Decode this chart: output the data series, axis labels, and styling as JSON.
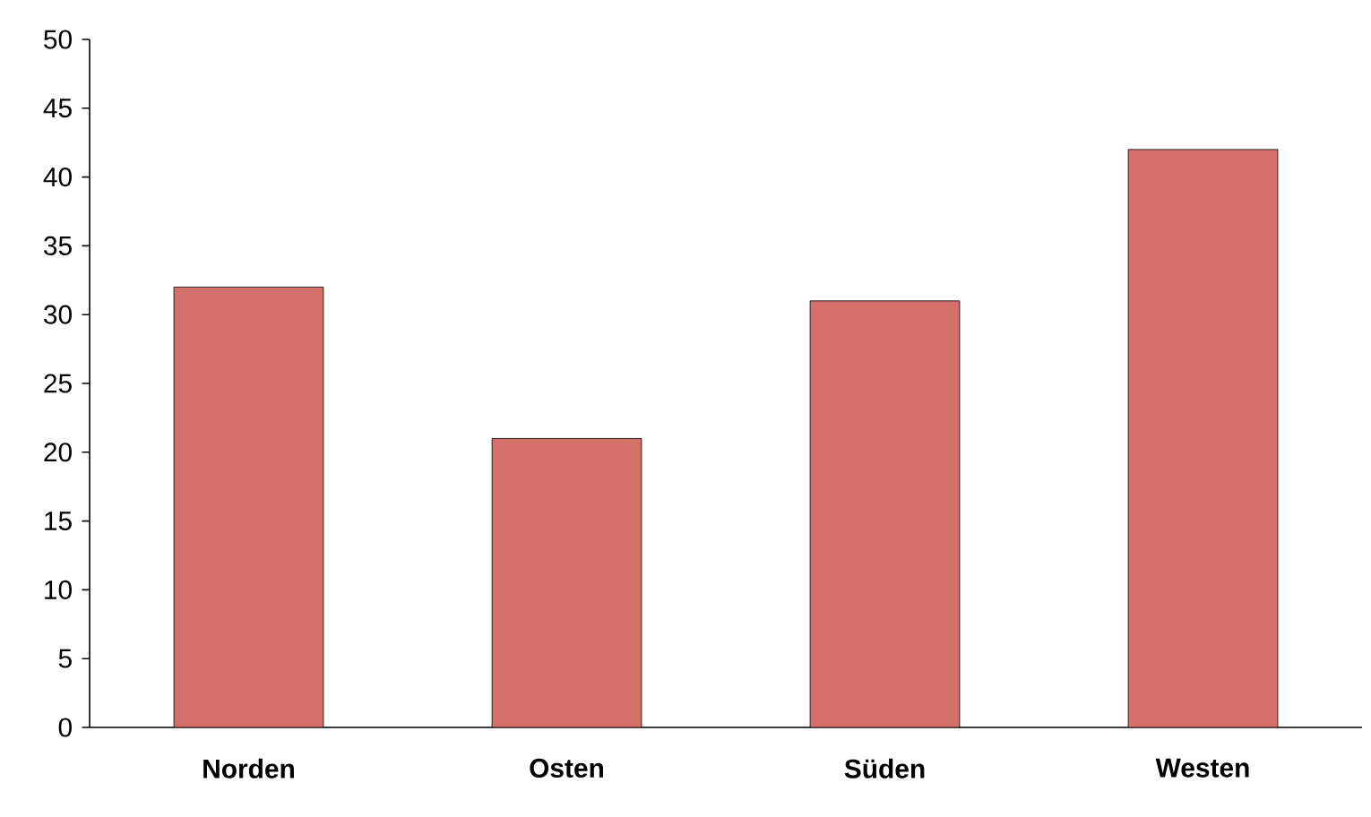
{
  "chart_data": {
    "type": "bar",
    "categories": [
      "Norden",
      "Osten",
      "Süden",
      "Westen"
    ],
    "values": [
      32,
      21,
      31,
      42
    ],
    "color": "#d4706a",
    "ylim": [
      0,
      50
    ],
    "yticks": [
      0,
      5,
      10,
      15,
      20,
      25,
      30,
      35,
      40,
      45,
      50
    ]
  }
}
